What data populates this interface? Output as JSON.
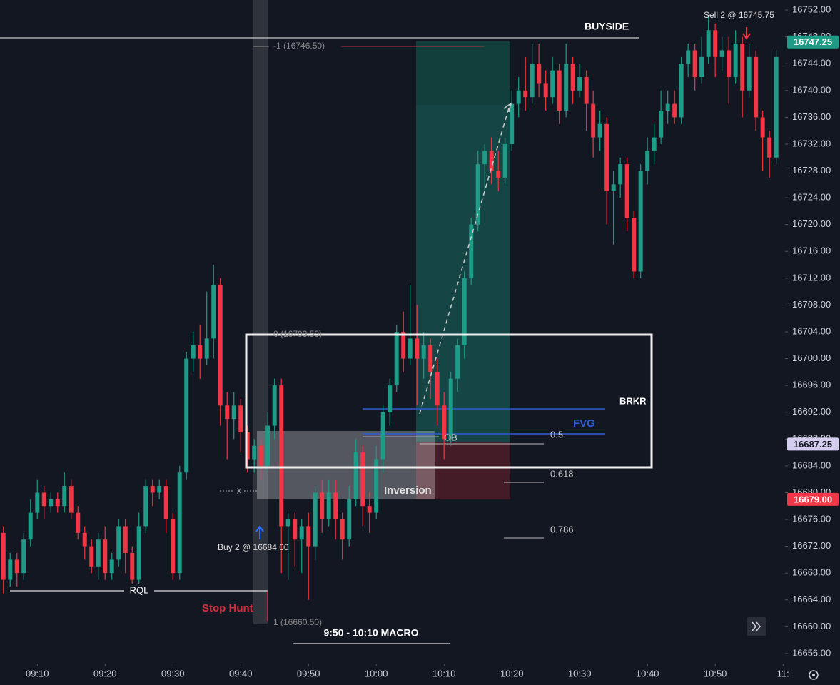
{
  "chart_data": {
    "type": "candlestick",
    "x": [
      545,
      546,
      547,
      548,
      549,
      550,
      551,
      552,
      553,
      554,
      555,
      556,
      557,
      558,
      559,
      560,
      561,
      562,
      563,
      564,
      565,
      566,
      567,
      568,
      569,
      570,
      571,
      572,
      573,
      574,
      575,
      576,
      577,
      578,
      579,
      580,
      581,
      582,
      583,
      584,
      585,
      586,
      587,
      588,
      589,
      590,
      591,
      592,
      593,
      594,
      595,
      596,
      597,
      598,
      599,
      600,
      601,
      602,
      603,
      604,
      605,
      606,
      607,
      608,
      609,
      610,
      611,
      612,
      613,
      614,
      615,
      616,
      617,
      618,
      619,
      620,
      621,
      622,
      623,
      624,
      625,
      626,
      627,
      628,
      629,
      630,
      631,
      632,
      633,
      634,
      635,
      636,
      637,
      638,
      639,
      640,
      641,
      642,
      643,
      644,
      645,
      646,
      647,
      648,
      649,
      650,
      651,
      652,
      653,
      654,
      655,
      656,
      657,
      658,
      659
    ],
    "open": [
      16674,
      16667,
      16670,
      16668,
      16673,
      16677,
      16680,
      16678,
      16679,
      16678,
      16681,
      16677,
      16674,
      16672,
      16669,
      16673,
      16668,
      16670,
      16675,
      16671,
      16667,
      16675,
      16681,
      16680,
      16681,
      16676,
      16668,
      16683,
      16700,
      16702,
      16700,
      16703,
      16711,
      16693,
      16691,
      16693,
      16689,
      16685,
      16687,
      16684,
      16690,
      16696,
      16675,
      16676,
      16673,
      16675,
      16672,
      16680,
      16676,
      16680,
      16676,
      16673,
      16679,
      16686,
      16678,
      16677,
      16685,
      16692,
      16696,
      16704,
      16700,
      16703,
      16700,
      16702,
      16698,
      16693,
      16688,
      16697,
      16702,
      16712,
      16720,
      16729,
      16731,
      16728,
      16727,
      16732,
      16738,
      16740,
      16739,
      16744,
      16741,
      16739,
      16743,
      16737,
      16744,
      16740,
      16742,
      16738,
      16733,
      16735,
      16725,
      16726,
      16729,
      16721,
      16713,
      16728,
      16731,
      16733,
      16737,
      16738,
      16736,
      16744,
      16746,
      16742,
      16745,
      16749,
      16745,
      16746,
      16742,
      16747,
      16740,
      16745,
      16736,
      16733,
      16730
    ],
    "high": [
      16675,
      16671,
      16671,
      16674,
      16679,
      16682,
      16681,
      16680,
      16680,
      16683,
      16682,
      16678,
      16675,
      16673,
      16674,
      16675,
      16671,
      16676,
      16676,
      16672,
      16677,
      16682,
      16682,
      16682,
      16682,
      16677,
      16684,
      16701,
      16704,
      16705,
      16710,
      16714,
      16712,
      16695,
      16695,
      16694,
      16690,
      16688,
      16688,
      16692,
      16697,
      16697,
      16677,
      16677,
      16676,
      16677,
      16681,
      16682,
      16682,
      16682,
      16677,
      16681,
      16688,
      16687,
      16680,
      16687,
      16693,
      16697,
      16705,
      16707,
      16711,
      16708,
      16704,
      16703,
      16700,
      16695,
      16698,
      16703,
      16713,
      16721,
      16731,
      16732,
      16733,
      16731,
      16733,
      16740,
      16742,
      16745,
      16747,
      16747,
      16743,
      16745,
      16744,
      16747,
      16745,
      16744,
      16743,
      16740,
      16737,
      16736,
      16728,
      16730,
      16730,
      16722,
      16729,
      16733,
      16735,
      16740,
      16740,
      16740,
      16745,
      16747,
      16747,
      16748,
      16751,
      16750,
      16748,
      16748,
      16749,
      16748,
      16747,
      16746,
      16737,
      16734,
      16746
    ],
    "low": [
      16665,
      16666,
      16666,
      16667,
      16672,
      16676,
      16676,
      16677,
      16677,
      16677,
      16676,
      16673,
      16670,
      16668,
      16667,
      16667,
      16667,
      16669,
      16668,
      16666,
      16666,
      16674,
      16678,
      16679,
      16674,
      16667,
      16667,
      16682,
      16698,
      16697,
      16699,
      16700,
      16690,
      16685,
      16688,
      16686,
      16683,
      16683,
      16682,
      16683,
      16688,
      16668,
      16667,
      16669,
      16668,
      16664,
      16670,
      16674,
      16675,
      16673,
      16670,
      16672,
      16678,
      16675,
      16674,
      16676,
      16683,
      16690,
      16695,
      16698,
      16699,
      16693,
      16697,
      16694,
      16690,
      16685,
      16687,
      16695,
      16700,
      16711,
      16719,
      16725,
      16726,
      16725,
      16726,
      16731,
      16736,
      16737,
      16738,
      16739,
      16737,
      16738,
      16735,
      16736,
      16738,
      16739,
      16734,
      16730,
      16731,
      16720,
      16717,
      16724,
      16719,
      16712,
      16712,
      16726,
      16729,
      16732,
      16735,
      16735,
      16735,
      16742,
      16740,
      16741,
      16744,
      16742,
      16743,
      16738,
      16741,
      16736,
      16739,
      16734,
      16728,
      16727,
      16729
    ],
    "close": [
      16667,
      16670,
      16668,
      16673,
      16677,
      16680,
      16678,
      16679,
      16678,
      16681,
      16677,
      16674,
      16672,
      16669,
      16673,
      16668,
      16670,
      16675,
      16671,
      16667,
      16675,
      16681,
      16680,
      16681,
      16676,
      16668,
      16683,
      16700,
      16702,
      16700,
      16703,
      16711,
      16693,
      16691,
      16693,
      16689,
      16685,
      16687,
      16684,
      16690,
      16696,
      16675,
      16676,
      16673,
      16675,
      16672,
      16680,
      16676,
      16680,
      16676,
      16673,
      16679,
      16686,
      16678,
      16677,
      16685,
      16692,
      16696,
      16704,
      16700,
      16703,
      16700,
      16702,
      16698,
      16693,
      16688,
      16697,
      16702,
      16712,
      16720,
      16729,
      16731,
      16728,
      16727,
      16732,
      16738,
      16740,
      16739,
      16744,
      16741,
      16739,
      16743,
      16737,
      16744,
      16740,
      16742,
      16738,
      16733,
      16735,
      16725,
      16726,
      16729,
      16721,
      16713,
      16728,
      16731,
      16733,
      16737,
      16738,
      16736,
      16744,
      16746,
      16742,
      16745,
      16749,
      16745,
      16746,
      16742,
      16747,
      16740,
      16745,
      16736,
      16733,
      16730,
      16745
    ],
    "up_color": "#1e9c87",
    "down_color": "#f23645",
    "xlim": [
      544.5,
      660.3
    ],
    "xticks": [
      {
        "value": 550,
        "label": "09:10"
      },
      {
        "value": 560,
        "label": "09:20"
      },
      {
        "value": 570,
        "label": "09:30"
      },
      {
        "value": 580,
        "label": "09:40"
      },
      {
        "value": 590,
        "label": "09:50"
      },
      {
        "value": 600,
        "label": "10:00"
      },
      {
        "value": 610,
        "label": "10:10"
      },
      {
        "value": 620,
        "label": "10:20"
      },
      {
        "value": 630,
        "label": "10:30"
      },
      {
        "value": 640,
        "label": "10:40"
      },
      {
        "value": 650,
        "label": "10:50"
      },
      {
        "value": 660,
        "label": "11:"
      }
    ],
    "ylim": [
      16654.5,
      16753.5
    ],
    "yticks": [
      {
        "value": 16752,
        "label": "16752.00"
      },
      {
        "value": 16748,
        "label": "16748.00"
      },
      {
        "value": 16744,
        "label": "16744.00"
      },
      {
        "value": 16740,
        "label": "16740.00"
      },
      {
        "value": 16736,
        "label": "16736.00"
      },
      {
        "value": 16732,
        "label": "16732.00"
      },
      {
        "value": 16728,
        "label": "16728.00"
      },
      {
        "value": 16724,
        "label": "16724.00"
      },
      {
        "value": 16720,
        "label": "16720.00"
      },
      {
        "value": 16716,
        "label": "16716.00"
      },
      {
        "value": 16712,
        "label": "16712.00"
      },
      {
        "value": 16708,
        "label": "16708.00"
      },
      {
        "value": 16704,
        "label": "16704.00"
      },
      {
        "value": 16700,
        "label": "16700.00"
      },
      {
        "value": 16696,
        "label": "16696.00"
      },
      {
        "value": 16692,
        "label": "16692.00"
      },
      {
        "value": 16688,
        "label": "16688.00"
      },
      {
        "value": 16684,
        "label": "16684.00"
      },
      {
        "value": 16680,
        "label": "16680.00"
      },
      {
        "value": 16676,
        "label": "16676.00"
      },
      {
        "value": 16672,
        "label": "16672.00"
      },
      {
        "value": 16668,
        "label": "16668.00"
      },
      {
        "value": 16664,
        "label": "16664.00"
      },
      {
        "value": 16660,
        "label": "16660.00"
      },
      {
        "value": 16656,
        "label": "16656.00"
      }
    ],
    "price_badges": [
      {
        "value": 16747.25,
        "label": "16747.25",
        "color": "#1e9c87",
        "text_color": "#ffffff"
      },
      {
        "value": 16687.25,
        "label": "16687.25",
        "color": "#d4cdf0",
        "text_color": "#131722"
      },
      {
        "value": 16679,
        "label": "16679.00",
        "color": "#f23645",
        "text_color": "#ffffff"
      }
    ],
    "annotations": {
      "buyside": "BUYSIDE",
      "sell": "Sell 2 @ 16745.75",
      "fib_top": "-1 (16746.50)",
      "fib_zero": "0 (16703.50)",
      "fib_one": "1 (16660.50)",
      "brkr": "BRKR",
      "fvg": "FVG",
      "ob": "OB",
      "fib_05": "0.5",
      "fib_0618": "0.618",
      "fib_0786": "0.786",
      "inversion": "Inversion",
      "buy": "Buy 2 @ 16684.00",
      "rql": "RQL",
      "stop_hunt": "Stop Hunt",
      "macro": "9:50 - 10:10 MACRO",
      "x_mark": "x"
    }
  }
}
